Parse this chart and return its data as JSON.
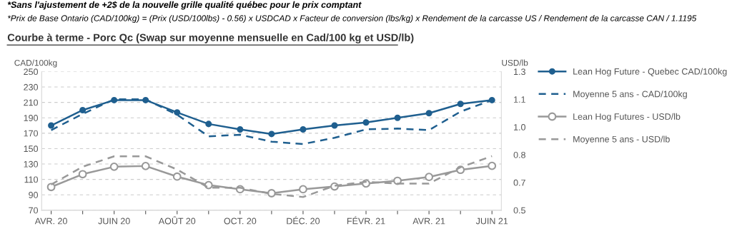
{
  "chart_data": {
    "type": "line",
    "title": "Courbe à terme - Porc Qc (Swap sur moyenne mensuelle en Cad/100 kg et USD/lb)",
    "annotations": [
      "*Sans l'ajustement de +2$ de la nouvelle grille qualité québec pour le prix comptant",
      "*Prix de Base Ontario (CAD/100kg) = (Prix (USD/100lbs) - 0.56) x USDCAD x Facteur de conversion (lbs/kg) x Rendement de la carcasse US / Rendement de la carcasse CAN / 1.1195"
    ],
    "ylabel": "CAD/100kg",
    "y2label": "USD/lb",
    "categories": [
      "AVR. 20",
      null,
      "JUIN 20",
      null,
      "AOÛT 20",
      null,
      "OCT. 20",
      null,
      "DÉC. 20",
      null,
      "FÉVR. 21",
      null,
      "AVR. 21",
      null,
      "JUIN 21"
    ],
    "series": [
      {
        "name": "Lean Hog Future - Quebec CAD/100kg",
        "color": "#1f5f8f",
        "marker": "circle",
        "line_style": "solid",
        "values": [
          180,
          200,
          213,
          213,
          197,
          182,
          175,
          169,
          175,
          180,
          184,
          190,
          196,
          208,
          213
        ]
      },
      {
        "name": "Moyenne 5 ans - CAD/100kg",
        "color": "#1f5f8f",
        "marker": "none",
        "line_style": "dashed",
        "values": [
          174,
          195,
          214,
          214,
          194,
          166,
          168,
          159,
          156,
          164,
          175,
          176,
          174,
          198,
          213
        ]
      },
      {
        "name": "Lean Hog Futures - USD/lb",
        "color": "#999999",
        "marker": "circle",
        "line_style": "solid",
        "axis": "y2",
        "values": [
          0.634,
          0.708,
          0.751,
          0.755,
          0.694,
          0.645,
          0.621,
          0.598,
          0.621,
          0.637,
          0.654,
          0.67,
          0.692,
          0.733,
          0.756
        ]
      },
      {
        "name": "Moyenne 5 ans - USD/lb",
        "color": "#999999",
        "marker": "none",
        "line_style": "dashed",
        "axis": "y2",
        "values": [
          0.648,
          0.751,
          0.811,
          0.811,
          0.735,
          0.63,
          0.63,
          0.594,
          0.576,
          0.641,
          0.664,
          0.654,
          0.654,
          0.748,
          0.812
        ]
      }
    ],
    "ylim": [
      70,
      250
    ],
    "yticks": [
      70,
      90,
      110,
      130,
      150,
      170,
      190,
      210,
      230,
      250
    ],
    "y2lim": [
      0.5,
      1.3
    ],
    "y2ticks": [
      0.5,
      {
        "value": 0.66,
        "label": "0.7"
      },
      {
        "value": 0.82,
        "label": "0.8"
      },
      {
        "value": 0.98,
        "label": "1.0"
      },
      {
        "value": 1.14,
        "label": "1.1"
      },
      1.3
    ],
    "grid": "y",
    "legend": "right"
  }
}
